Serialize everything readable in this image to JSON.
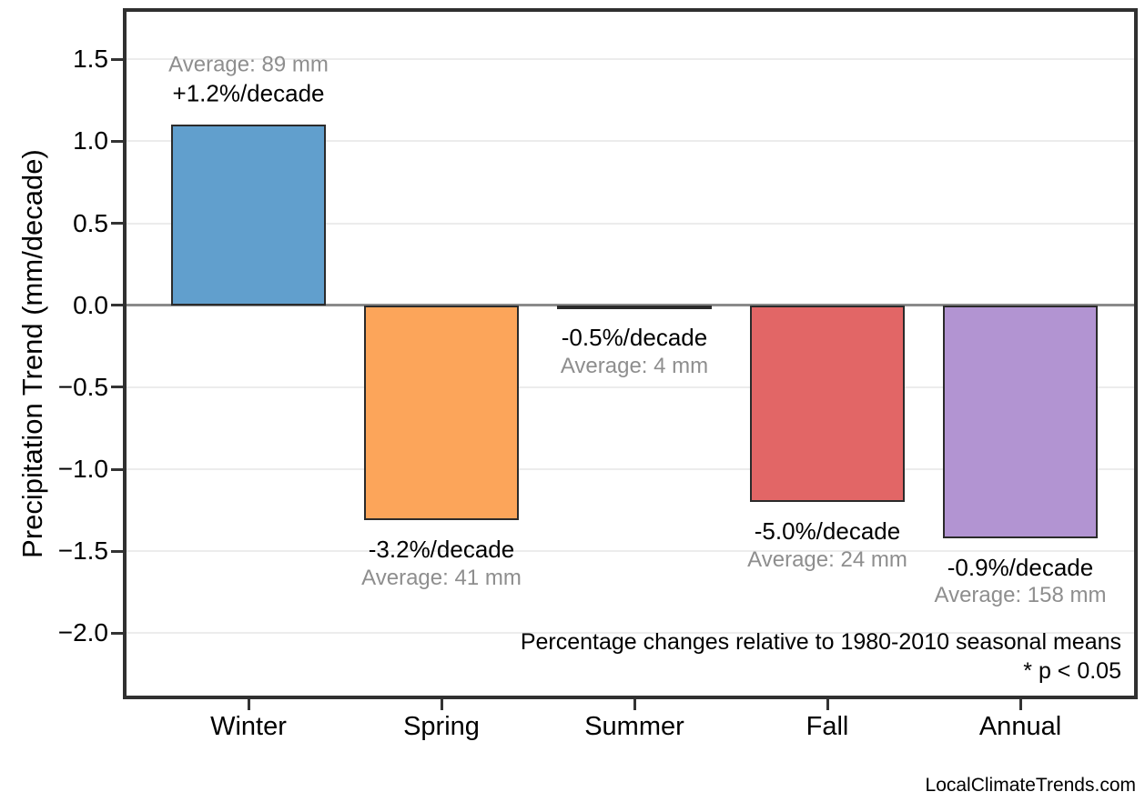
{
  "chart_data": {
    "type": "bar",
    "title": "",
    "ylabel": "Precipitation Trend (mm/decade)",
    "categories": [
      "Winter",
      "Spring",
      "Summer",
      "Fall",
      "Annual"
    ],
    "values": [
      1.1,
      -1.31,
      -0.02,
      -1.2,
      -1.42
    ],
    "units": "mm/decade",
    "bar_colors": [
      "#619fcd",
      "#fca55a",
      "#5a9e5c",
      "#e26666",
      "#b294d2"
    ],
    "bar_edge_color": "#2b2b2b",
    "bar_labels": [
      {
        "percent": "+1.2%/decade",
        "average": "Average: 89 mm",
        "label_position": "above"
      },
      {
        "percent": "-3.2%/decade",
        "average": "Average: 41 mm",
        "label_position": "below"
      },
      {
        "percent": "-0.5%/decade",
        "average": "Average: 4 mm",
        "label_position": "below"
      },
      {
        "percent": "-5.0%/decade",
        "average": "Average: 24 mm",
        "label_position": "below"
      },
      {
        "percent": "-0.9%/decade",
        "average": "Average: 158 mm",
        "label_position": "below"
      }
    ],
    "ytick_labels": [
      "1.5",
      "1.0",
      "0.5",
      "0.0",
      "−0.5",
      "−1.0",
      "−1.5",
      "−2.0"
    ],
    "ytick_values": [
      1.5,
      1.0,
      0.5,
      0.0,
      -0.5,
      -1.0,
      -1.5,
      -2.0
    ],
    "ylim": [
      -2.38,
      1.79
    ],
    "grid": "horizontal-major",
    "zero_line": true,
    "legend": "none"
  },
  "annotations": {
    "footnote_line1": "Percentage changes relative to 1980-2010 seasonal means",
    "footnote_line2": "* p < 0.05"
  },
  "footer": {
    "watermark": "LocalClimateTrends.com"
  },
  "colors": {
    "grid": "#ececec",
    "zero_line": "#8a8a8a",
    "axis_border": "#303030",
    "tick": "#333333",
    "annotation_percent": "#000000",
    "annotation_average": "#8e8e8e"
  }
}
